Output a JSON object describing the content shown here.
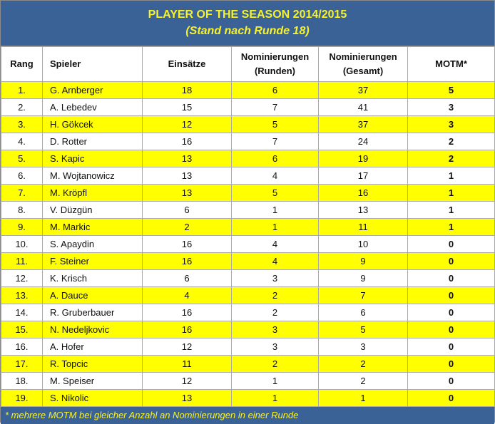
{
  "header": {
    "title": "PLAYER OF THE SEASON 2014/2015",
    "subtitle": "(Stand nach Runde 18)"
  },
  "columns": {
    "rang": "Rang",
    "spieler": "Spieler",
    "einsaetze": "Einsätze",
    "nom_runden_1": "Nominierungen",
    "nom_runden_2": "(Runden)",
    "nom_gesamt_1": "Nominierungen",
    "nom_gesamt_2": "(Gesamt)",
    "motm": "MOTM*"
  },
  "rows": [
    {
      "rang": "1.",
      "spieler": "G. Arnberger",
      "einsaetze": "18",
      "runden": "6",
      "gesamt": "37",
      "motm": "5"
    },
    {
      "rang": "2.",
      "spieler": "A. Lebedev",
      "einsaetze": "15",
      "runden": "7",
      "gesamt": "41",
      "motm": "3"
    },
    {
      "rang": "3.",
      "spieler": "H. Gökcek",
      "einsaetze": "12",
      "runden": "5",
      "gesamt": "37",
      "motm": "3"
    },
    {
      "rang": "4.",
      "spieler": "D. Rotter",
      "einsaetze": "16",
      "runden": "7",
      "gesamt": "24",
      "motm": "2"
    },
    {
      "rang": "5.",
      "spieler": "S. Kapic",
      "einsaetze": "13",
      "runden": "6",
      "gesamt": "19",
      "motm": "2"
    },
    {
      "rang": "6.",
      "spieler": "M. Wojtanowicz",
      "einsaetze": "13",
      "runden": "4",
      "gesamt": "17",
      "motm": "1"
    },
    {
      "rang": "7.",
      "spieler": "M. Kröpfl",
      "einsaetze": "13",
      "runden": "5",
      "gesamt": "16",
      "motm": "1"
    },
    {
      "rang": "8.",
      "spieler": "V. Düzgün",
      "einsaetze": "6",
      "runden": "1",
      "gesamt": "13",
      "motm": "1"
    },
    {
      "rang": "9.",
      "spieler": "M. Markic",
      "einsaetze": "2",
      "runden": "1",
      "gesamt": "11",
      "motm": "1"
    },
    {
      "rang": "10.",
      "spieler": "S. Apaydin",
      "einsaetze": "16",
      "runden": "4",
      "gesamt": "10",
      "motm": "0"
    },
    {
      "rang": "11.",
      "spieler": "F. Steiner",
      "einsaetze": "16",
      "runden": "4",
      "gesamt": "9",
      "motm": "0"
    },
    {
      "rang": "12.",
      "spieler": "K. Krisch",
      "einsaetze": "6",
      "runden": "3",
      "gesamt": "9",
      "motm": "0"
    },
    {
      "rang": "13.",
      "spieler": "A. Dauce",
      "einsaetze": "4",
      "runden": "2",
      "gesamt": "7",
      "motm": "0"
    },
    {
      "rang": "14.",
      "spieler": "R. Gruberbauer",
      "einsaetze": "16",
      "runden": "2",
      "gesamt": "6",
      "motm": "0"
    },
    {
      "rang": "15.",
      "spieler": "N. Nedeljkovic",
      "einsaetze": "16",
      "runden": "3",
      "gesamt": "5",
      "motm": "0"
    },
    {
      "rang": "16.",
      "spieler": "A. Hofer",
      "einsaetze": "12",
      "runden": "3",
      "gesamt": "3",
      "motm": "0"
    },
    {
      "rang": "17.",
      "spieler": "R. Topcic",
      "einsaetze": "11",
      "runden": "2",
      "gesamt": "2",
      "motm": "0"
    },
    {
      "rang": "18.",
      "spieler": "M. Speiser",
      "einsaetze": "12",
      "runden": "1",
      "gesamt": "2",
      "motm": "0"
    },
    {
      "rang": "19.",
      "spieler": "S. Nikolic",
      "einsaetze": "13",
      "runden": "1",
      "gesamt": "1",
      "motm": "0"
    }
  ],
  "footer": "* mehrere MOTM bei gleicher Anzahl an Nominierungen in einer Runde",
  "colors": {
    "header_bg": "#3a6297",
    "header_text": "#f7f22a",
    "highlight_row": "#ffff00"
  }
}
